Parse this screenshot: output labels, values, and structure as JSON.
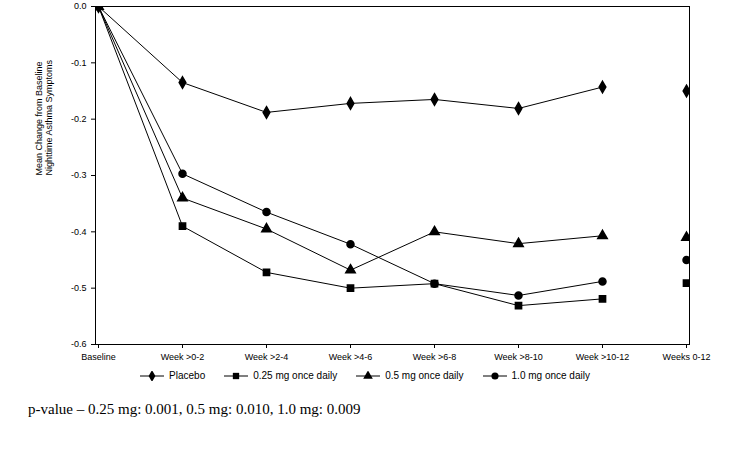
{
  "chart_data": {
    "type": "line",
    "y_label": "Mean Change from Baseline\nNighttime Asthma Symptoms",
    "categories": [
      "Baseline",
      "Week >0-2",
      "Week >2-4",
      "Week >4-6",
      "Week >6-8",
      "Week >8-10",
      "Week >10-12",
      "Weeks 0-12"
    ],
    "series": [
      {
        "name": "Placebo",
        "color": "#000000",
        "marker": "diamond",
        "values": [
          0,
          -0.135,
          -0.188,
          -0.172,
          -0.165,
          -0.181,
          -0.143,
          -0.15
        ]
      },
      {
        "name": "0.25 mg once daily",
        "color": "#000000",
        "marker": "square",
        "values": [
          0,
          -0.39,
          -0.472,
          -0.5,
          -0.492,
          -0.531,
          -0.519,
          -0.491
        ]
      },
      {
        "name": "0.5 mg once daily",
        "color": "#000000",
        "marker": "triangle",
        "values": [
          0,
          -0.34,
          -0.395,
          -0.468,
          -0.4,
          -0.421,
          -0.407,
          -0.41
        ]
      },
      {
        "name": "1.0 mg once daily",
        "color": "#000000",
        "marker": "circle",
        "values": [
          0,
          -0.297,
          -0.365,
          -0.422,
          -0.492,
          -0.513,
          -0.488,
          -0.45
        ]
      }
    ],
    "ylim": [
      -0.6,
      0
    ],
    "yticks": [
      {
        "value": 0,
        "label": "0.0"
      },
      -0.1,
      -0.2,
      -0.3,
      -0.4,
      -0.5,
      -0.6
    ],
    "legend": "bottom",
    "grid": false,
    "caption": "p-value – 0.25 mg: 0.001, 0.5 mg: 0.010, 1.0 mg: 0.009"
  }
}
